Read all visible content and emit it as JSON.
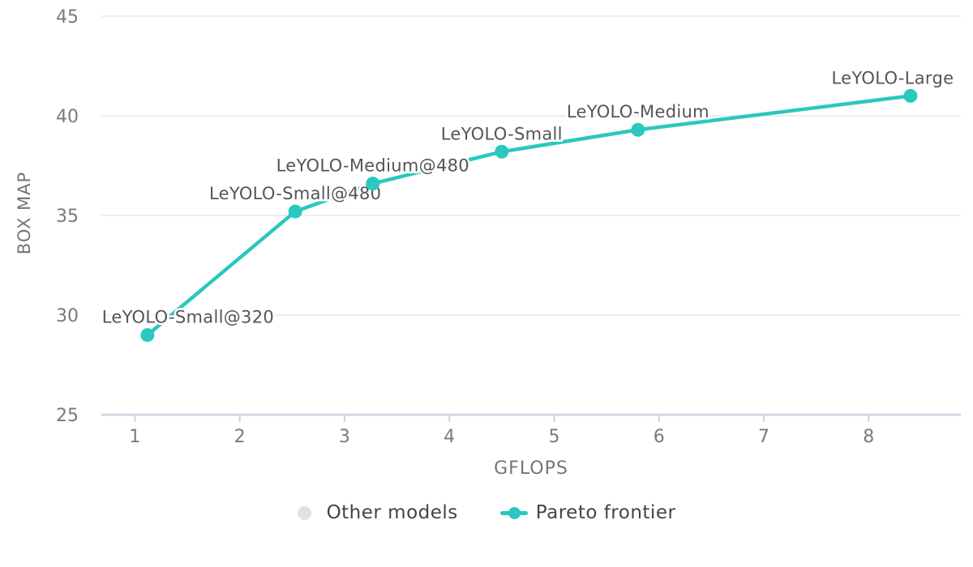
{
  "chart_data": {
    "type": "scatter",
    "title": "",
    "xlabel": "GFLOPS",
    "ylabel": "BOX MAP",
    "xlim": [
      0.68,
      8.88
    ],
    "ylim": [
      25,
      45
    ],
    "x_ticks": [
      1,
      2,
      3,
      4,
      5,
      6,
      7,
      8
    ],
    "y_ticks": [
      25,
      30,
      35,
      40,
      45
    ],
    "grid": true,
    "legend_position": "bottom-center",
    "series": [
      {
        "name": "Pareto frontier",
        "mode": "line+markers",
        "points": [
          {
            "label": "LeYOLO-Small@320",
            "x": 1.12,
            "y": 29.0,
            "label_dx": 50,
            "label_dy": -15
          },
          {
            "label": "LeYOLO-Small@480",
            "x": 2.53,
            "y": 35.2,
            "label_dx": 0,
            "label_dy": -15
          },
          {
            "label": "LeYOLO-Medium@480",
            "x": 3.27,
            "y": 36.6,
            "label_dx": 0,
            "label_dy": -15
          },
          {
            "label": "LeYOLO-Small",
            "x": 4.5,
            "y": 38.2,
            "label_dx": 0,
            "label_dy": -15
          },
          {
            "label": "LeYOLO-Medium",
            "x": 5.8,
            "y": 39.3,
            "label_dx": 0,
            "label_dy": -15
          },
          {
            "label": "LeYOLO-Large",
            "x": 8.4,
            "y": 41.0,
            "label_dx": -22,
            "label_dy": -15
          }
        ]
      }
    ],
    "legend": [
      {
        "label": "Other models",
        "marker": "dot",
        "color": "#e2e2e2"
      },
      {
        "label": "Pareto frontier",
        "marker": "line-dot",
        "color": "#2ac8be"
      }
    ]
  },
  "colors": {
    "series_teal": "#2ac8be",
    "other_models_gray": "#e2e2e2",
    "gridline": "#e8e8e8",
    "axis_line": "#c9d4e3",
    "tick_text": "#7a7a7a",
    "axis_title_text": "#757575",
    "point_label_text": "#555558",
    "legend_text": "#444444",
    "background": "#ffffff"
  }
}
